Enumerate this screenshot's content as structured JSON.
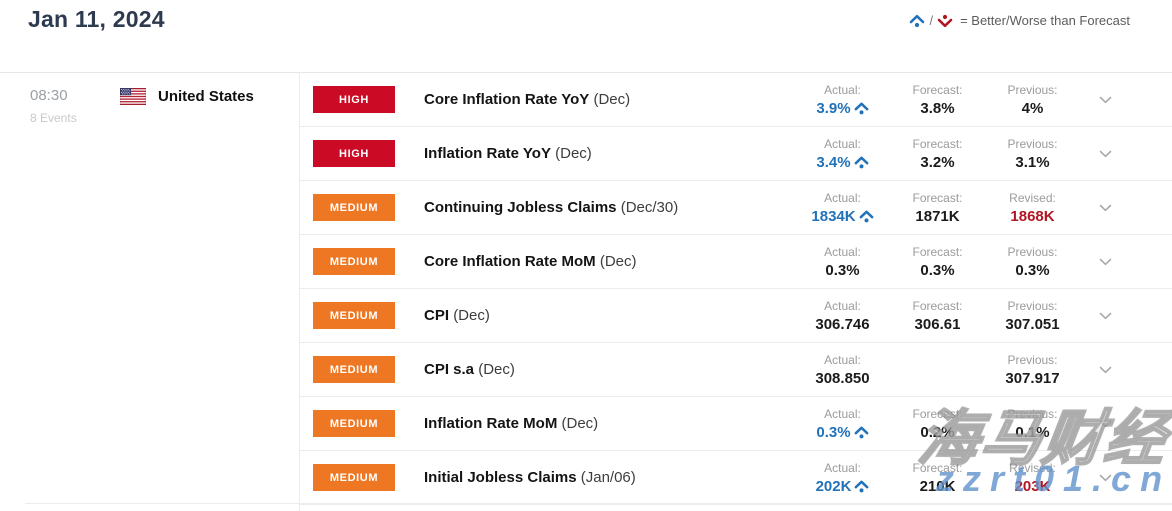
{
  "page": {
    "date_title": "Jan 11, 2024",
    "legend_text": "= Better/Worse than Forecast"
  },
  "group": {
    "time": "08:30",
    "event_count": "8 Events",
    "country": "United States"
  },
  "colors": {
    "high_badge": "#cb0a25",
    "medium_badge": "#ee7723",
    "better_blue": "#2272b9",
    "revised_red": "#b01722",
    "title_navy": "#2e3b4e"
  },
  "rows": [
    {
      "importance": "HIGH",
      "name": "Core Inflation Rate YoY",
      "period": "(Dec)",
      "cells": [
        {
          "label": "Actual:",
          "value": "3.9%",
          "state": "better"
        },
        {
          "label": "Forecast:",
          "value": "3.8%"
        },
        {
          "label": "Previous:",
          "value": "4%"
        }
      ]
    },
    {
      "importance": "HIGH",
      "name": "Inflation Rate YoY",
      "period": "(Dec)",
      "cells": [
        {
          "label": "Actual:",
          "value": "3.4%",
          "state": "better"
        },
        {
          "label": "Forecast:",
          "value": "3.2%"
        },
        {
          "label": "Previous:",
          "value": "3.1%"
        }
      ]
    },
    {
      "importance": "MEDIUM",
      "name": "Continuing Jobless Claims",
      "period": "(Dec/30)",
      "cells": [
        {
          "label": "Actual:",
          "value": "1834K",
          "state": "better"
        },
        {
          "label": "Forecast:",
          "value": "1871K"
        },
        {
          "label": "Revised:",
          "value": "1868K",
          "state": "revised"
        }
      ]
    },
    {
      "importance": "MEDIUM",
      "name": "Core Inflation Rate MoM",
      "period": "(Dec)",
      "cells": [
        {
          "label": "Actual:",
          "value": "0.3%"
        },
        {
          "label": "Forecast:",
          "value": "0.3%"
        },
        {
          "label": "Previous:",
          "value": "0.3%"
        }
      ]
    },
    {
      "importance": "MEDIUM",
      "name": "CPI",
      "period": "(Dec)",
      "cells": [
        {
          "label": "Actual:",
          "value": "306.746"
        },
        {
          "label": "Forecast:",
          "value": "306.61"
        },
        {
          "label": "Previous:",
          "value": "307.051"
        }
      ]
    },
    {
      "importance": "MEDIUM",
      "name": "CPI s.a",
      "period": "(Dec)",
      "cells": [
        {
          "label": "Actual:",
          "value": "308.850"
        },
        null,
        {
          "label": "Previous:",
          "value": "307.917"
        }
      ]
    },
    {
      "importance": "MEDIUM",
      "name": "Inflation Rate MoM",
      "period": "(Dec)",
      "cells": [
        {
          "label": "Actual:",
          "value": "0.3%",
          "state": "better"
        },
        {
          "label": "Forecast:",
          "value": "0.2%"
        },
        {
          "label": "Previous:",
          "value": "0.1%"
        }
      ]
    },
    {
      "importance": "MEDIUM",
      "name": "Initial Jobless Claims",
      "period": "(Jan/06)",
      "cells": [
        {
          "label": "Actual:",
          "value": "202K",
          "state": "better"
        },
        {
          "label": "Forecast:",
          "value": "210K"
        },
        {
          "label": "Revised:",
          "value": "203K",
          "state": "revised"
        }
      ]
    }
  ],
  "watermark": {
    "line1": "海马财经",
    "line2": "zzrt01.cn"
  }
}
